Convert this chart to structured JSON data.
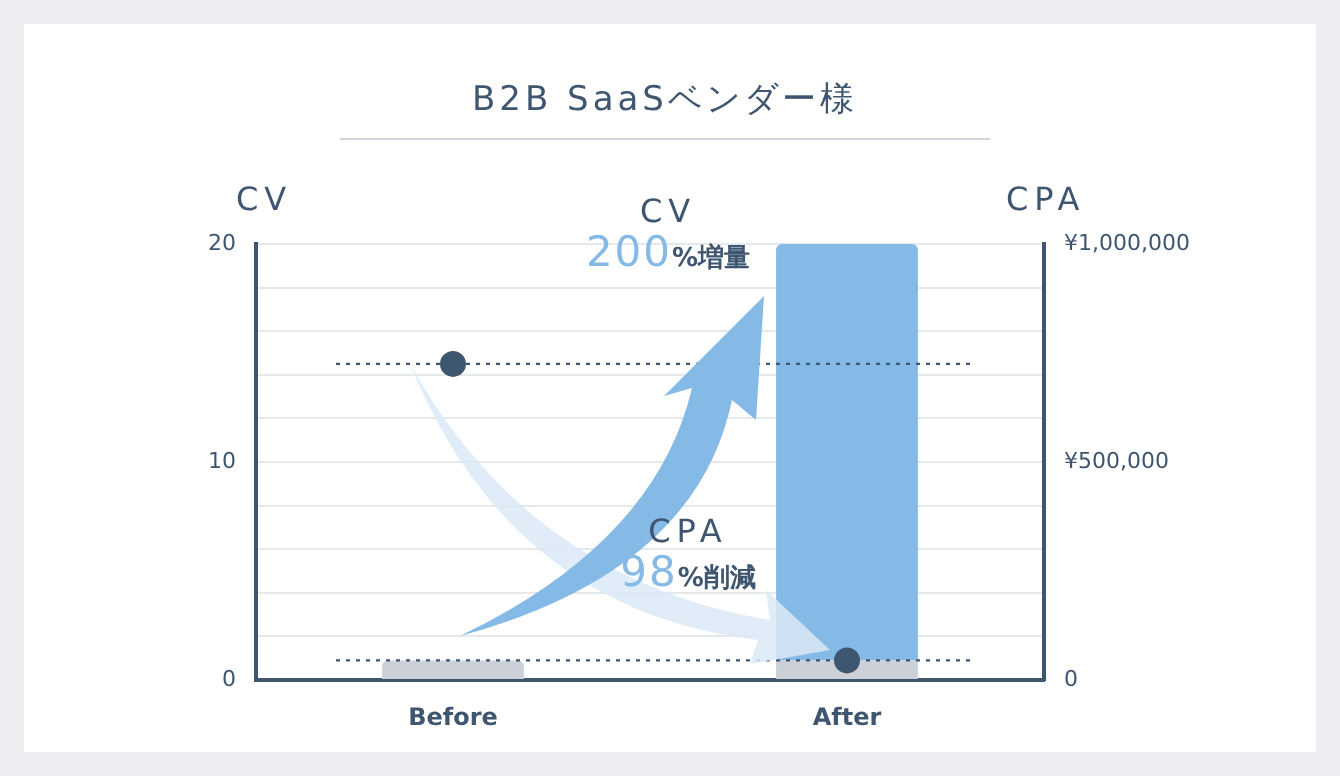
{
  "chart_data": {
    "type": "bar",
    "title": "B2B SaaSベンダー様",
    "ylabel": "CV",
    "y2label": "CPA",
    "categories": [
      "Before",
      "After"
    ],
    "stacked": true,
    "series": [
      {
        "color": "#ccd1d9",
        "values": [
          0.9,
          0.9
        ]
      },
      {
        "color": "#85b9e6",
        "values": [
          null,
          19.1
        ]
      },
      {
        "type": "scatter",
        "axis": "y2",
        "marker": "circle",
        "color": "#3f5670",
        "values": [
          725000,
          45000
        ]
      }
    ],
    "ylim": [
      0,
      20
    ],
    "yticks": [
      0,
      {
        "value": 2,
        "label": null
      },
      {
        "value": 4,
        "label": null
      },
      {
        "value": 6,
        "label": null
      },
      {
        "value": 8,
        "label": null
      },
      10,
      {
        "value": 12,
        "label": null
      },
      {
        "value": 14,
        "label": null
      },
      {
        "value": 16,
        "label": null
      },
      {
        "value": 18,
        "label": null
      },
      20
    ],
    "y2lim": [
      0,
      1000000
    ],
    "y2ticks": [
      0,
      {
        "value": 500000,
        "label": "¥500,000"
      },
      {
        "value": 1000000,
        "label": "¥1,000,000"
      }
    ],
    "ref_lines": [
      {
        "axis": "y2",
        "value": 725000,
        "line_style": "dotted",
        "color": "#3f5670"
      },
      {
        "axis": "y2",
        "value": 45000,
        "line_style": "dotted",
        "color": "#3f5670"
      }
    ],
    "grid": "y",
    "legend": false,
    "annotations": [
      "CV",
      "200%増量",
      "CPA",
      "98%削減"
    ]
  }
}
